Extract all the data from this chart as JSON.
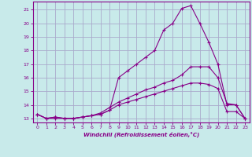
{
  "xlabel": "Windchill (Refroidissement éolien,°C)",
  "background_color": "#c8eaea",
  "grid_color": "#aaaacc",
  "line_color": "#880088",
  "xlim": [
    -0.5,
    23.5
  ],
  "ylim": [
    12.7,
    21.6
  ],
  "yticks": [
    13,
    14,
    15,
    16,
    17,
    18,
    19,
    20,
    21
  ],
  "xticks": [
    0,
    1,
    2,
    3,
    4,
    5,
    6,
    7,
    8,
    9,
    10,
    11,
    12,
    13,
    14,
    15,
    16,
    17,
    18,
    19,
    20,
    21,
    22,
    23
  ],
  "series1_x": [
    0,
    1,
    2,
    3,
    4,
    5,
    6,
    7,
    8,
    9,
    10,
    11,
    12,
    13,
    14,
    15,
    16,
    17,
    18,
    19,
    20,
    21,
    22,
    23
  ],
  "series1_y": [
    13.3,
    13.0,
    13.1,
    13.0,
    13.0,
    13.1,
    13.2,
    13.3,
    13.6,
    16.0,
    16.5,
    17.0,
    17.5,
    18.0,
    19.5,
    20.0,
    21.1,
    21.3,
    20.0,
    18.6,
    17.0,
    14.0,
    14.0,
    13.0
  ],
  "series2_x": [
    0,
    1,
    2,
    3,
    4,
    5,
    6,
    7,
    8,
    9,
    10,
    11,
    12,
    13,
    14,
    15,
    16,
    17,
    18,
    19,
    20,
    21,
    22,
    23
  ],
  "series2_y": [
    13.3,
    13.0,
    13.1,
    13.0,
    13.0,
    13.1,
    13.2,
    13.4,
    13.8,
    14.2,
    14.5,
    14.8,
    15.1,
    15.3,
    15.6,
    15.8,
    16.2,
    16.8,
    16.8,
    16.8,
    16.0,
    14.1,
    14.0,
    13.0
  ],
  "series3_x": [
    0,
    1,
    2,
    3,
    4,
    5,
    6,
    7,
    8,
    9,
    10,
    11,
    12,
    13,
    14,
    15,
    16,
    17,
    18,
    19,
    20,
    21,
    22,
    23
  ],
  "series3_y": [
    13.3,
    13.0,
    13.0,
    13.0,
    13.0,
    13.1,
    13.2,
    13.3,
    13.6,
    14.0,
    14.2,
    14.4,
    14.6,
    14.8,
    15.0,
    15.2,
    15.4,
    15.6,
    15.6,
    15.5,
    15.2,
    13.5,
    13.5,
    13.0
  ]
}
